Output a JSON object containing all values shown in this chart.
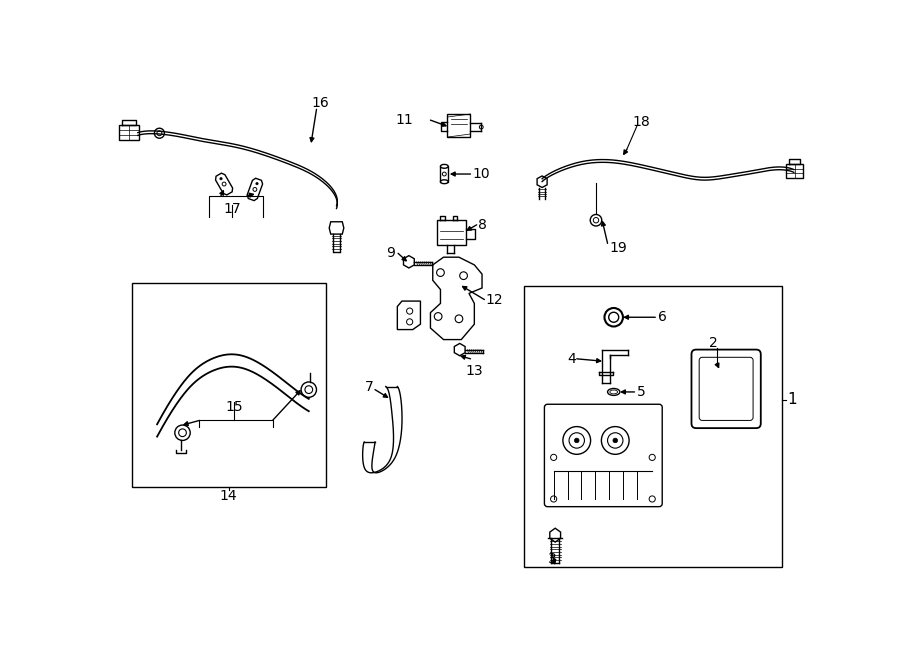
{
  "bg_color": "#ffffff",
  "line_color": "#000000",
  "fig_width": 9.0,
  "fig_height": 6.61,
  "font_size": 10
}
